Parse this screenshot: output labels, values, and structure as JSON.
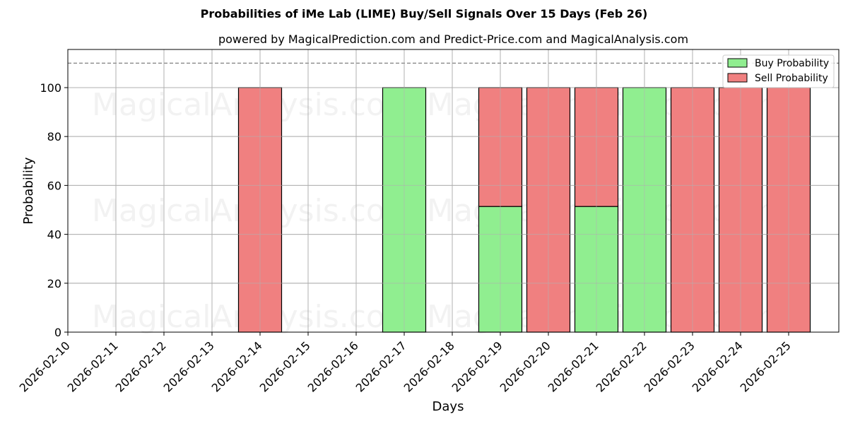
{
  "chart_data": {
    "type": "bar",
    "stacked": true,
    "title": "Probabilities of iMe Lab (LIME) Buy/Sell Signals Over 15 Days (Feb 26)",
    "subtitle": "powered by MagicalPrediction.com and Predict-Price.com and MagicalAnalysis.com",
    "xlabel": "Days",
    "ylabel": "Probability",
    "ylim": [
      0,
      115.6
    ],
    "yticks": [
      0,
      20,
      40,
      60,
      80,
      100
    ],
    "grid": true,
    "legend_position": "upper right",
    "reference_line": {
      "y": 110,
      "style": "dashed",
      "color": "#808080"
    },
    "categories": [
      "2026-02-10",
      "2026-02-11",
      "2026-02-12",
      "2026-02-13",
      "2026-02-14",
      "2026-02-15",
      "2026-02-16",
      "2026-02-17",
      "2026-02-18",
      "2026-02-19",
      "2026-02-20",
      "2026-02-21",
      "2026-02-22",
      "2026-02-23",
      "2026-02-24",
      "2026-02-25"
    ],
    "series": [
      {
        "name": "Buy Probability",
        "color": "#90ee90",
        "values": [
          0,
          0,
          0,
          0,
          0,
          0,
          0,
          100,
          0,
          51.4,
          0,
          51.4,
          100,
          0,
          0,
          0
        ]
      },
      {
        "name": "Sell Probability",
        "color": "#f08080",
        "values": [
          0,
          0,
          0,
          0,
          100,
          0,
          0,
          0,
          0,
          48.6,
          100,
          48.6,
          0,
          100,
          100,
          100
        ]
      }
    ],
    "watermarks": [
      "MagicalAnalysis.com",
      "MagicalPrediction.com"
    ]
  },
  "legend": {
    "buy_label": "Buy Probability",
    "sell_label": "Sell Probability"
  }
}
